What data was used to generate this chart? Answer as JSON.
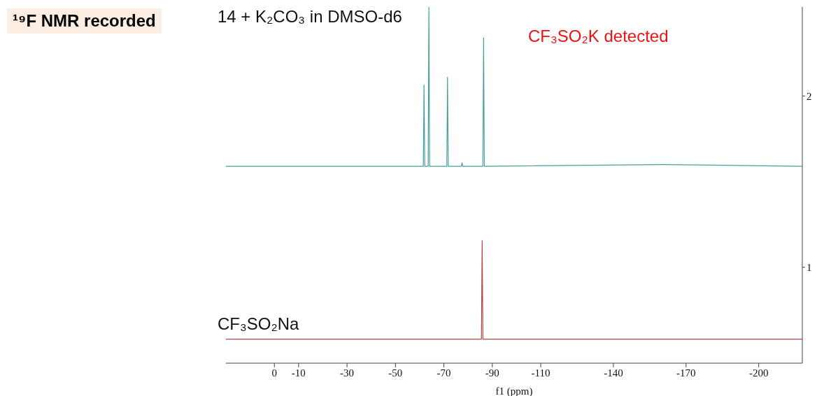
{
  "chart_data": {
    "type": "line",
    "title": "¹⁹F NMR recorded",
    "xlabel": "f1 (ppm)",
    "annotations": [
      "CF₃SO₂K detected"
    ],
    "marker": "none",
    "line_style": "solid",
    "xlim": [
      20,
      -218
    ],
    "xticks": [
      0,
      -10,
      -30,
      -50,
      -70,
      -90,
      -110,
      -140,
      -170,
      -200
    ],
    "ylim": [
      0.44,
      2.52
    ],
    "yticks": [
      1,
      2
    ],
    "series": [
      {
        "name": "14 + K₂CO₃ in DMSO-d6",
        "color": "#4a9e9e",
        "x": [
          20,
          -61.5,
          -61.8,
          -62.1,
          -63.5,
          -63.8,
          -64.1,
          -71.2,
          -71.5,
          -71.8,
          -77.2,
          -77.5,
          -77.8,
          -86.1,
          -86.4,
          -86.7,
          -160,
          -218
        ],
        "values": [
          1.59,
          1.59,
          2.065,
          1.59,
          1.59,
          2.52,
          1.59,
          1.59,
          2.11,
          1.59,
          1.59,
          1.61,
          1.59,
          1.59,
          2.34,
          1.59,
          1.6,
          1.59
        ]
      },
      {
        "name": "CF₃SO₂Na",
        "color": "#b04848",
        "x": [
          20,
          -85.5,
          -85.8,
          -86.1,
          -218
        ],
        "values": [
          0.58,
          0.58,
          1.155,
          0.58,
          0.58
        ]
      }
    ]
  }
}
